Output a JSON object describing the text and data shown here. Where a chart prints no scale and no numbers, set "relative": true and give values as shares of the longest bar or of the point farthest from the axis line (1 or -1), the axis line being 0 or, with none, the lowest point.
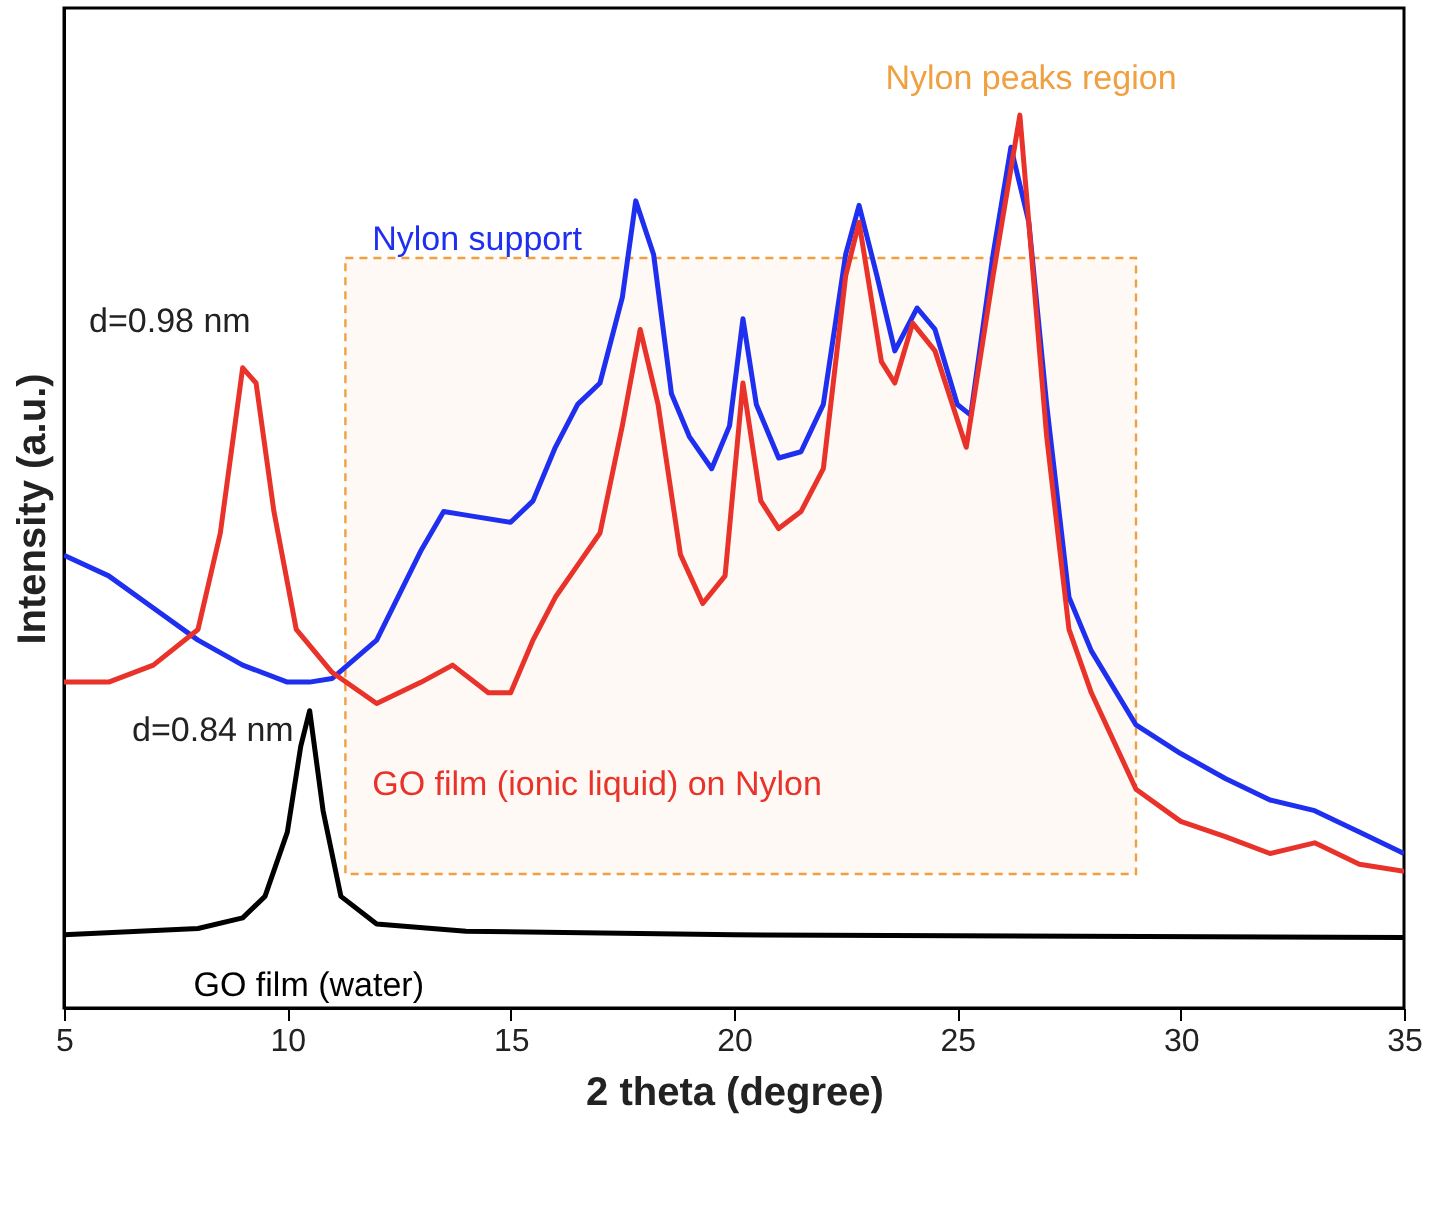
{
  "chart_data": {
    "type": "line",
    "relative": true,
    "xlabel": "2 theta (degree)",
    "ylabel": "Intensity (a.u.)",
    "xlim": [
      5,
      35
    ],
    "xticks": [
      5,
      10,
      15,
      20,
      25,
      30,
      35
    ],
    "series": [
      {
        "name": "Nylon support",
        "color": "#1f2ff0",
        "x": [
          5,
          6,
          7,
          8,
          9,
          10,
          10.5,
          11,
          12,
          13,
          13.5,
          14,
          15,
          15.5,
          16,
          16.5,
          17,
          17.5,
          17.8,
          18.2,
          18.6,
          19,
          19.5,
          19.9,
          20.2,
          20.5,
          21,
          21.5,
          22,
          22.5,
          22.8,
          23.2,
          23.6,
          24.1,
          24.5,
          25,
          25.3,
          25.8,
          26.2,
          26.6,
          27,
          27.5,
          28,
          29,
          30,
          31,
          32,
          33,
          34,
          35
        ],
        "values": [
          0.507,
          0.484,
          0.448,
          0.412,
          0.384,
          0.365,
          0.365,
          0.369,
          0.412,
          0.513,
          0.556,
          0.552,
          0.544,
          0.568,
          0.628,
          0.676,
          0.7,
          0.796,
          0.904,
          0.844,
          0.688,
          0.64,
          0.604,
          0.652,
          0.772,
          0.676,
          0.616,
          0.623,
          0.676,
          0.844,
          0.899,
          0.82,
          0.736,
          0.784,
          0.76,
          0.676,
          0.664,
          0.844,
          0.964,
          0.88,
          0.676,
          0.46,
          0.4,
          0.317,
          0.285,
          0.257,
          0.233,
          0.221,
          0.197,
          0.173
        ]
      },
      {
        "name": "GO film (ionic liquid) on Nylon",
        "color": "#e8322a",
        "x": [
          5,
          6,
          7,
          8,
          8.5,
          9,
          9.3,
          9.7,
          10.2,
          11,
          12,
          13,
          13.7,
          14.5,
          15,
          15.5,
          16,
          16.5,
          17,
          17.5,
          17.9,
          18.3,
          18.8,
          19.3,
          19.8,
          20.2,
          20.6,
          21,
          21.5,
          22,
          22.5,
          22.8,
          23.3,
          23.6,
          24,
          24.5,
          25.2,
          25.8,
          26.2,
          26.4,
          26.7,
          27,
          27.5,
          28,
          29,
          30,
          31,
          32,
          33,
          34,
          35
        ],
        "values": [
          0.365,
          0.365,
          0.384,
          0.424,
          0.532,
          0.717,
          0.7,
          0.556,
          0.424,
          0.376,
          0.341,
          0.365,
          0.384,
          0.353,
          0.353,
          0.412,
          0.46,
          0.496,
          0.532,
          0.652,
          0.76,
          0.676,
          0.508,
          0.453,
          0.484,
          0.7,
          0.568,
          0.537,
          0.556,
          0.604,
          0.82,
          0.88,
          0.724,
          0.7,
          0.767,
          0.736,
          0.628,
          0.82,
          0.94,
          1.0,
          0.82,
          0.64,
          0.424,
          0.353,
          0.245,
          0.209,
          0.192,
          0.173,
          0.185,
          0.161,
          0.153
        ]
      },
      {
        "name": "GO film (water)",
        "color": "#000000",
        "x": [
          5,
          8,
          9,
          9.5,
          10,
          10.3,
          10.5,
          10.8,
          11.2,
          12,
          14,
          20,
          35
        ],
        "values": [
          0.082,
          0.089,
          0.101,
          0.125,
          0.197,
          0.293,
          0.333,
          0.221,
          0.125,
          0.094,
          0.086,
          0.082,
          0.079
        ]
      }
    ],
    "annotations": [
      {
        "text": "d=0.98 nm",
        "x": 9,
        "y": 0.717
      },
      {
        "text": "d=0.84 nm",
        "x": 10.5,
        "y": 0.333
      }
    ],
    "bands": [
      {
        "axis": "x",
        "from": 11.3,
        "to": 29,
        "label": "Nylon peaks region",
        "color": "#f0a040"
      }
    ],
    "grid": false
  }
}
